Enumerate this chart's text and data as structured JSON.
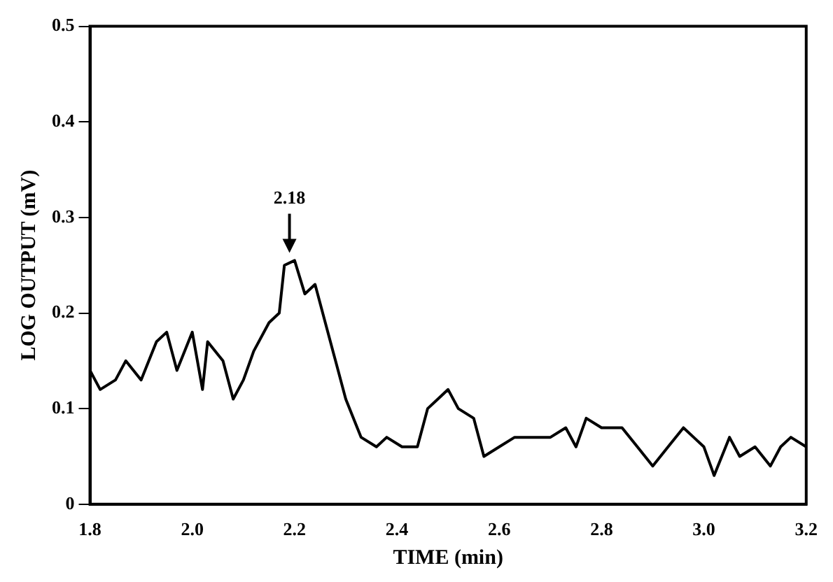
{
  "chart_data": {
    "type": "line",
    "xlabel": "TIME (min)",
    "ylabel": "LOG OUTPUT (mV)",
    "color": "#000000",
    "xlim": [
      1.8,
      3.2
    ],
    "xticks": [
      {
        "value": 1.8,
        "label": "1.8"
      },
      {
        "value": 2.0,
        "label": "2.0"
      },
      {
        "value": 2.2,
        "label": "2.2"
      },
      {
        "value": 2.4,
        "label": "2.4"
      },
      {
        "value": 2.6,
        "label": "2.6"
      },
      {
        "value": 2.8,
        "label": "2.8"
      },
      {
        "value": 3.0,
        "label": "3.0"
      },
      {
        "value": 3.2,
        "label": "3.2"
      }
    ],
    "ylim": [
      0,
      0.5
    ],
    "yticks": [
      0,
      0.1,
      0.2,
      0.3,
      0.4,
      0.5
    ],
    "grid": false,
    "legend": false,
    "marker": "none",
    "annotations": [
      {
        "text": "2.18",
        "x": 2.19,
        "y": 0.26
      }
    ],
    "x": [
      1.8,
      1.82,
      1.85,
      1.87,
      1.9,
      1.93,
      1.95,
      1.97,
      2.0,
      2.02,
      2.03,
      2.06,
      2.08,
      2.1,
      2.12,
      2.15,
      2.17,
      2.18,
      2.2,
      2.22,
      2.24,
      2.26,
      2.28,
      2.3,
      2.33,
      2.36,
      2.38,
      2.41,
      2.44,
      2.46,
      2.48,
      2.5,
      2.52,
      2.55,
      2.57,
      2.6,
      2.63,
      2.66,
      2.7,
      2.73,
      2.75,
      2.77,
      2.8,
      2.82,
      2.84,
      2.87,
      2.9,
      2.93,
      2.96,
      2.98,
      3.0,
      3.02,
      3.05,
      3.07,
      3.1,
      3.13,
      3.15,
      3.17,
      3.2
    ],
    "values": [
      0.14,
      0.12,
      0.13,
      0.15,
      0.13,
      0.17,
      0.18,
      0.14,
      0.18,
      0.12,
      0.17,
      0.15,
      0.11,
      0.13,
      0.16,
      0.19,
      0.2,
      0.25,
      0.255,
      0.22,
      0.23,
      0.19,
      0.15,
      0.11,
      0.07,
      0.06,
      0.07,
      0.06,
      0.06,
      0.1,
      0.11,
      0.12,
      0.1,
      0.09,
      0.05,
      0.06,
      0.07,
      0.07,
      0.07,
      0.08,
      0.06,
      0.09,
      0.08,
      0.08,
      0.08,
      0.06,
      0.04,
      0.06,
      0.08,
      0.07,
      0.06,
      0.03,
      0.07,
      0.05,
      0.06,
      0.04,
      0.06,
      0.07,
      0.06
    ]
  }
}
